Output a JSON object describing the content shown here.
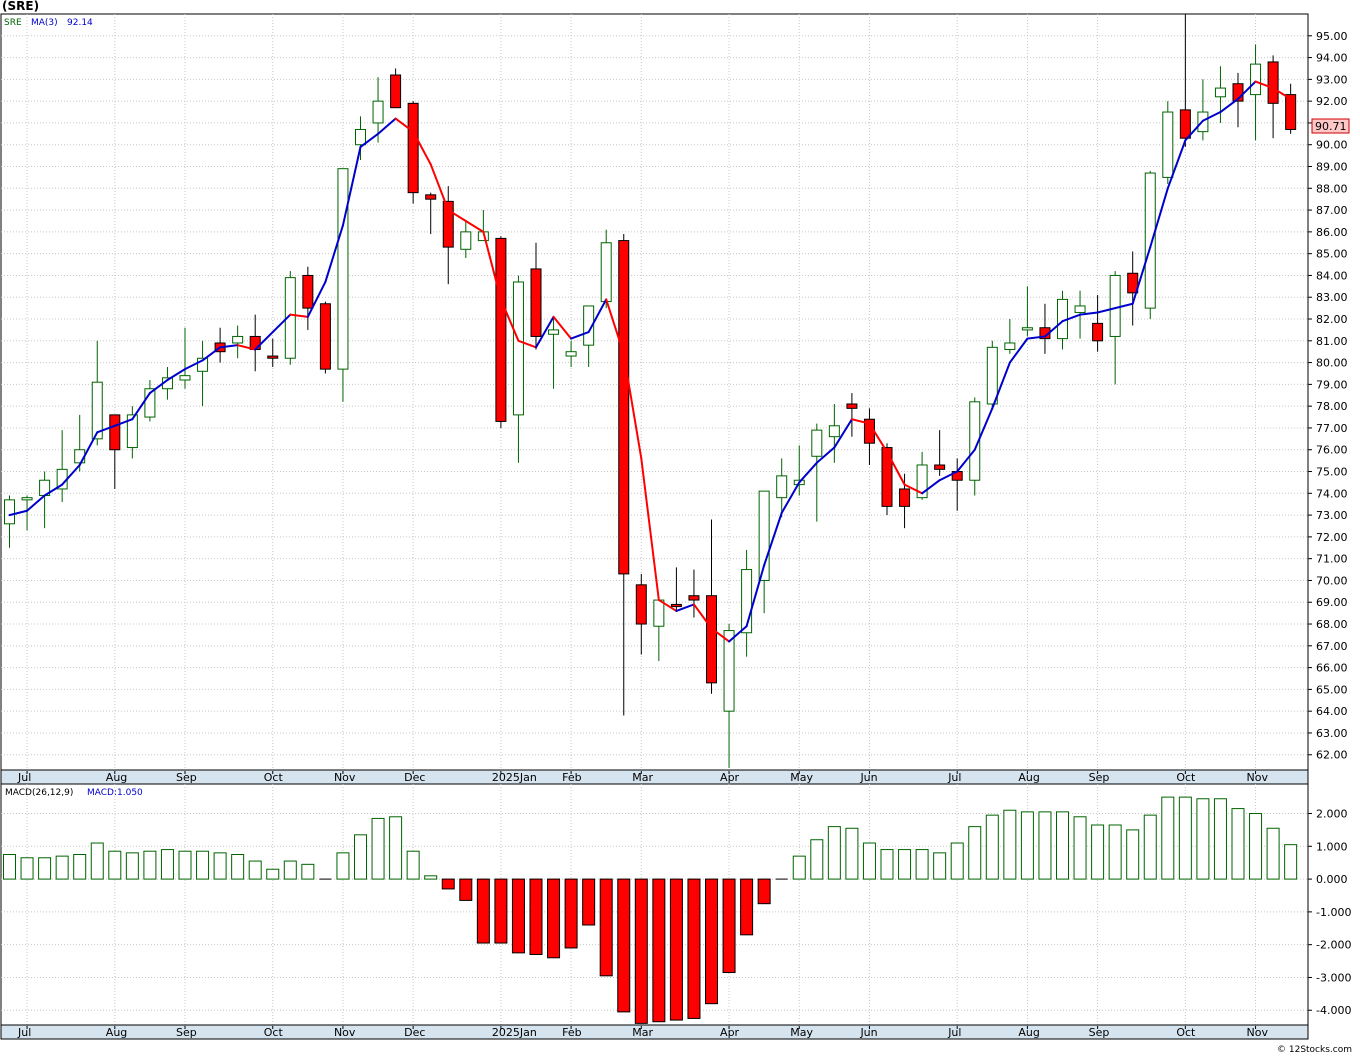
{
  "title": "(SRE)",
  "legend": {
    "symbol": "SRE",
    "ma_label": "MA(3)",
    "ma_value": "92.14",
    "macd_label": "MACD(26,12,9)",
    "macd_value": "MACD:1.050"
  },
  "last_price_label": "90.71",
  "watermark": "© 12Stocks.com",
  "colors": {
    "up_body": "#ffffff",
    "up_outline": "#006400",
    "down_body": "#ff0000",
    "ma_up": "#0000cc",
    "ma_down": "#ff0000",
    "axis_band": "#d6e4f0",
    "grid": "#c8c8c8"
  },
  "chart_data": [
    {
      "type": "candlestick",
      "title": "(SRE)",
      "ylim": [
        61.3,
        96.0
      ],
      "yticks": [
        "62.00",
        "63.00",
        "64.00",
        "65.00",
        "66.00",
        "67.00",
        "68.00",
        "69.00",
        "70.00",
        "71.00",
        "72.00",
        "73.00",
        "74.00",
        "75.00",
        "76.00",
        "77.00",
        "78.00",
        "79.00",
        "80.00",
        "81.00",
        "82.00",
        "83.00",
        "84.00",
        "85.00",
        "86.00",
        "87.00",
        "88.00",
        "89.00",
        "90.00",
        "91.00",
        "92.00",
        "93.00",
        "94.00",
        "95.00"
      ],
      "x_axis": [
        {
          "label": "Jul",
          "at": 1
        },
        {
          "label": "Aug",
          "at": 6
        },
        {
          "label": "Sep",
          "at": 10
        },
        {
          "label": "Oct",
          "at": 15
        },
        {
          "label": "Nov",
          "at": 19
        },
        {
          "label": "Dec",
          "at": 23
        },
        {
          "label": "2025Jan",
          "at": 28
        },
        {
          "label": "Feb",
          "at": 32
        },
        {
          "label": "Mar",
          "at": 36
        },
        {
          "label": "Apr",
          "at": 41
        },
        {
          "label": "May",
          "at": 45
        },
        {
          "label": "Jun",
          "at": 49
        },
        {
          "label": "Jul",
          "at": 54
        },
        {
          "label": "Aug",
          "at": 58
        },
        {
          "label": "Sep",
          "at": 62
        },
        {
          "label": "Oct",
          "at": 67
        },
        {
          "label": "Nov",
          "at": 71
        }
      ],
      "candles": [
        {
          "o": 72.6,
          "h": 73.9,
          "l": 71.5,
          "c": 73.7
        },
        {
          "o": 73.7,
          "h": 73.9,
          "l": 72.3,
          "c": 73.8
        },
        {
          "o": 73.9,
          "h": 75.0,
          "l": 72.4,
          "c": 74.6
        },
        {
          "o": 74.2,
          "h": 76.9,
          "l": 73.6,
          "c": 75.1
        },
        {
          "o": 75.4,
          "h": 77.6,
          "l": 75.0,
          "c": 76.0
        },
        {
          "o": 76.5,
          "h": 81.0,
          "l": 76.2,
          "c": 79.1
        },
        {
          "o": 77.6,
          "h": 77.5,
          "l": 74.2,
          "c": 76.0
        },
        {
          "o": 76.1,
          "h": 78.0,
          "l": 75.6,
          "c": 77.6
        },
        {
          "o": 77.5,
          "h": 79.2,
          "l": 77.3,
          "c": 78.8
        },
        {
          "o": 78.8,
          "h": 79.8,
          "l": 78.3,
          "c": 79.3
        },
        {
          "o": 79.2,
          "h": 81.6,
          "l": 78.8,
          "c": 79.4
        },
        {
          "o": 79.6,
          "h": 81.0,
          "l": 78.0,
          "c": 80.2
        },
        {
          "o": 80.9,
          "h": 81.6,
          "l": 80.0,
          "c": 80.5
        },
        {
          "o": 80.9,
          "h": 81.7,
          "l": 80.2,
          "c": 81.2
        },
        {
          "o": 81.2,
          "h": 82.2,
          "l": 79.6,
          "c": 80.6
        },
        {
          "o": 80.3,
          "h": 81.1,
          "l": 79.8,
          "c": 80.2
        },
        {
          "o": 80.2,
          "h": 84.2,
          "l": 79.9,
          "c": 83.9
        },
        {
          "o": 84.0,
          "h": 84.4,
          "l": 81.5,
          "c": 82.5
        },
        {
          "o": 82.7,
          "h": 82.8,
          "l": 79.5,
          "c": 79.7
        },
        {
          "o": 79.7,
          "h": 88.9,
          "l": 78.2,
          "c": 88.9
        },
        {
          "o": 90.0,
          "h": 91.3,
          "l": 89.3,
          "c": 90.7
        },
        {
          "o": 91.0,
          "h": 93.1,
          "l": 90.1,
          "c": 92.0
        },
        {
          "o": 93.2,
          "h": 93.5,
          "l": 91.7,
          "c": 91.7
        },
        {
          "o": 91.9,
          "h": 92.0,
          "l": 87.3,
          "c": 87.8
        },
        {
          "o": 87.7,
          "h": 87.8,
          "l": 85.9,
          "c": 87.5
        },
        {
          "o": 87.4,
          "h": 88.1,
          "l": 83.6,
          "c": 85.3
        },
        {
          "o": 85.2,
          "h": 86.5,
          "l": 84.8,
          "c": 86.0
        },
        {
          "o": 85.6,
          "h": 87.0,
          "l": 85.6,
          "c": 86.0
        },
        {
          "o": 85.7,
          "h": 85.8,
          "l": 77.0,
          "c": 77.3
        },
        {
          "o": 77.6,
          "h": 84.0,
          "l": 75.4,
          "c": 83.7
        },
        {
          "o": 84.3,
          "h": 85.5,
          "l": 80.6,
          "c": 81.2
        },
        {
          "o": 81.3,
          "h": 82.1,
          "l": 78.8,
          "c": 81.5
        },
        {
          "o": 80.3,
          "h": 81.0,
          "l": 79.8,
          "c": 80.5
        },
        {
          "o": 80.8,
          "h": 82.3,
          "l": 79.8,
          "c": 82.6
        },
        {
          "o": 82.8,
          "h": 86.1,
          "l": 82.5,
          "c": 85.5
        },
        {
          "o": 85.6,
          "h": 85.9,
          "l": 63.8,
          "c": 70.3
        },
        {
          "o": 69.8,
          "h": 70.3,
          "l": 66.6,
          "c": 68.0
        },
        {
          "o": 67.9,
          "h": 69.1,
          "l": 66.3,
          "c": 69.1
        },
        {
          "o": 68.9,
          "h": 70.6,
          "l": 68.6,
          "c": 68.8
        },
        {
          "o": 69.3,
          "h": 70.5,
          "l": 68.3,
          "c": 69.1
        },
        {
          "o": 69.3,
          "h": 72.8,
          "l": 64.8,
          "c": 65.3
        },
        {
          "o": 64.0,
          "h": 68.0,
          "l": 61.4,
          "c": 67.7
        },
        {
          "o": 67.6,
          "h": 71.4,
          "l": 66.5,
          "c": 70.5
        },
        {
          "o": 70.0,
          "h": 74.0,
          "l": 68.5,
          "c": 74.1
        },
        {
          "o": 73.8,
          "h": 75.6,
          "l": 72.9,
          "c": 74.8
        },
        {
          "o": 74.4,
          "h": 76.2,
          "l": 73.9,
          "c": 74.6
        },
        {
          "o": 75.7,
          "h": 77.2,
          "l": 72.7,
          "c": 76.9
        },
        {
          "o": 76.6,
          "h": 78.1,
          "l": 75.4,
          "c": 77.1
        },
        {
          "o": 78.1,
          "h": 78.6,
          "l": 76.6,
          "c": 77.9
        },
        {
          "o": 77.4,
          "h": 77.9,
          "l": 75.3,
          "c": 76.3
        },
        {
          "o": 76.1,
          "h": 76.3,
          "l": 73.0,
          "c": 73.4
        },
        {
          "o": 74.2,
          "h": 74.9,
          "l": 72.4,
          "c": 73.4
        },
        {
          "o": 73.8,
          "h": 75.9,
          "l": 73.7,
          "c": 75.3
        },
        {
          "o": 75.3,
          "h": 76.9,
          "l": 74.8,
          "c": 75.1
        },
        {
          "o": 75.0,
          "h": 75.6,
          "l": 73.2,
          "c": 74.6
        },
        {
          "o": 74.6,
          "h": 78.4,
          "l": 73.9,
          "c": 78.2
        },
        {
          "o": 78.1,
          "h": 81.0,
          "l": 77.9,
          "c": 80.7
        },
        {
          "o": 80.6,
          "h": 82.0,
          "l": 80.4,
          "c": 80.9
        },
        {
          "o": 81.5,
          "h": 83.5,
          "l": 81.2,
          "c": 81.6
        },
        {
          "o": 81.6,
          "h": 82.7,
          "l": 80.4,
          "c": 81.1
        },
        {
          "o": 81.1,
          "h": 83.3,
          "l": 80.6,
          "c": 82.9
        },
        {
          "o": 82.3,
          "h": 83.3,
          "l": 81.1,
          "c": 82.6
        },
        {
          "o": 81.8,
          "h": 83.1,
          "l": 80.5,
          "c": 81.0
        },
        {
          "o": 81.2,
          "h": 84.2,
          "l": 79.0,
          "c": 84.0
        },
        {
          "o": 84.1,
          "h": 85.1,
          "l": 81.7,
          "c": 83.2
        },
        {
          "o": 82.5,
          "h": 88.8,
          "l": 82.0,
          "c": 88.7
        },
        {
          "o": 88.5,
          "h": 92.0,
          "l": 88.2,
          "c": 91.5
        },
        {
          "o": 91.6,
          "h": 96.0,
          "l": 89.9,
          "c": 90.3
        },
        {
          "o": 90.6,
          "h": 93.0,
          "l": 90.2,
          "c": 91.5
        },
        {
          "o": 92.2,
          "h": 93.6,
          "l": 91.0,
          "c": 92.6
        },
        {
          "o": 92.8,
          "h": 93.3,
          "l": 90.8,
          "c": 92.0
        },
        {
          "o": 92.3,
          "h": 94.6,
          "l": 90.2,
          "c": 93.7
        },
        {
          "o": 93.8,
          "h": 94.1,
          "l": 90.3,
          "c": 91.9
        },
        {
          "o": 92.3,
          "h": 92.8,
          "l": 90.5,
          "c": 90.7
        }
      ],
      "ma": [
        73.0,
        73.2,
        73.9,
        74.4,
        75.3,
        76.8,
        77.1,
        77.4,
        78.6,
        79.2,
        79.7,
        80.1,
        80.7,
        80.8,
        80.6,
        81.4,
        82.2,
        82.1,
        83.7,
        86.3,
        89.9,
        90.5,
        91.2,
        90.6,
        89.1,
        87.0,
        86.5,
        86.0,
        82.9,
        81.0,
        80.7,
        82.1,
        81.1,
        81.4,
        82.9,
        80.4,
        75.6,
        69.1,
        68.6,
        68.9,
        67.8,
        67.2,
        67.9,
        70.7,
        73.1,
        74.5,
        75.4,
        76.1,
        77.4,
        77.2,
        75.9,
        74.4,
        74.0,
        74.6,
        75.0,
        76.0,
        77.9,
        80.0,
        81.1,
        81.2,
        81.9,
        82.2,
        82.3,
        82.5,
        82.7,
        85.3,
        88.0,
        90.2,
        91.1,
        91.5,
        92.1,
        92.9,
        92.6,
        92.1
      ]
    },
    {
      "type": "bar",
      "title": "MACD(26,12,9)",
      "ylim": [
        -4.45,
        2.9
      ],
      "yticks": [
        "-4.000",
        "-3.000",
        "-2.000",
        "-1.000",
        "0.000",
        "1.000",
        "2.000"
      ],
      "values": [
        0.75,
        0.65,
        0.65,
        0.7,
        0.75,
        1.1,
        0.85,
        0.8,
        0.85,
        0.9,
        0.85,
        0.85,
        0.8,
        0.75,
        0.55,
        0.3,
        0.55,
        0.45,
        0.0,
        0.8,
        1.35,
        1.85,
        1.9,
        0.85,
        0.1,
        -0.3,
        -0.65,
        -1.95,
        -1.95,
        -2.25,
        -2.3,
        -2.4,
        -2.1,
        -1.4,
        -2.95,
        -4.05,
        -4.4,
        -4.35,
        -4.3,
        -4.25,
        -3.8,
        -2.85,
        -1.7,
        -0.75,
        0.0,
        0.7,
        1.2,
        1.6,
        1.55,
        1.1,
        0.9,
        0.9,
        0.9,
        0.8,
        1.1,
        1.6,
        1.95,
        2.1,
        2.05,
        2.05,
        2.05,
        1.9,
        1.65,
        1.65,
        1.5,
        1.95,
        2.5,
        2.5,
        2.45,
        2.45,
        2.15,
        2.0,
        1.55,
        1.05
      ]
    }
  ]
}
